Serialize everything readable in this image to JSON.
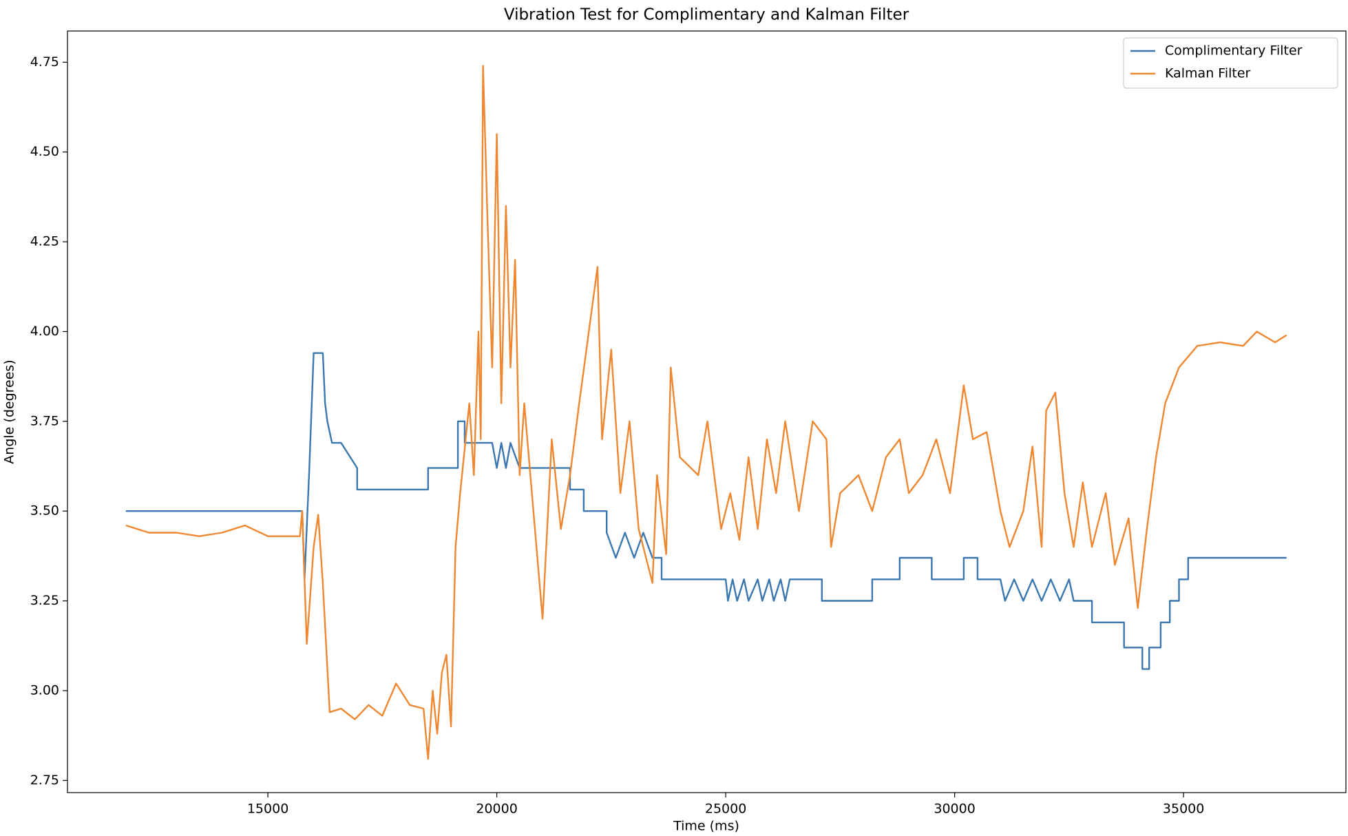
{
  "chart_data": {
    "type": "line",
    "title": "Vibration Test for Complimentary and Kalman Filter",
    "x_label": "Time (ms)",
    "y_label": "Angle (degrees)",
    "xlim": [
      10623,
      38547
    ],
    "ylim": [
      2.716,
      4.837
    ],
    "xticks": [
      15000,
      20000,
      25000,
      30000,
      35000
    ],
    "yticks": [
      2.75,
      {
        "value": 3.0,
        "label": "3.00"
      },
      3.25,
      {
        "value": 3.5,
        "label": "3.50"
      },
      3.75,
      {
        "value": 4.0,
        "label": "4.00"
      },
      4.25,
      {
        "value": 4.5,
        "label": "4.50"
      },
      4.75
    ],
    "legend": "upper right",
    "series": [
      {
        "name": "Complimentary Filter",
        "color": "#3a76b0",
        "x": [
          11900,
          15750,
          15800,
          15900,
          16000,
          16200,
          16250,
          16300,
          16400,
          16600,
          16950,
          16950,
          18500,
          18500,
          19150,
          19150,
          19300,
          19300,
          19900,
          20000,
          20100,
          20200,
          20300,
          20500,
          20500,
          21600,
          21600,
          21900,
          21900,
          22400,
          22400,
          22600,
          22800,
          23000,
          23200,
          23400,
          23600,
          23600,
          25000,
          25050,
          25150,
          25250,
          25400,
          25500,
          25700,
          25800,
          25950,
          26050,
          26200,
          26300,
          26400,
          27100,
          27100,
          28200,
          28200,
          28800,
          28800,
          29500,
          29500,
          30200,
          30200,
          30500,
          30500,
          31000,
          31100,
          31300,
          31500,
          31700,
          31900,
          32100,
          32300,
          32500,
          32600,
          33000,
          33000,
          33700,
          33700,
          34100,
          34100,
          34250,
          34250,
          34500,
          34500,
          34700,
          34700,
          34900,
          34900,
          35100,
          35100,
          37250
        ],
        "values": [
          3.5,
          3.5,
          3.31,
          3.6,
          3.94,
          3.94,
          3.8,
          3.75,
          3.69,
          3.69,
          3.62,
          3.56,
          3.56,
          3.62,
          3.62,
          3.75,
          3.75,
          3.69,
          3.69,
          3.62,
          3.69,
          3.62,
          3.69,
          3.62,
          3.62,
          3.62,
          3.56,
          3.56,
          3.5,
          3.5,
          3.44,
          3.37,
          3.44,
          3.37,
          3.44,
          3.37,
          3.37,
          3.31,
          3.31,
          3.25,
          3.31,
          3.25,
          3.31,
          3.25,
          3.31,
          3.25,
          3.31,
          3.25,
          3.31,
          3.25,
          3.31,
          3.31,
          3.25,
          3.25,
          3.31,
          3.31,
          3.37,
          3.37,
          3.31,
          3.31,
          3.37,
          3.37,
          3.31,
          3.31,
          3.25,
          3.31,
          3.25,
          3.31,
          3.25,
          3.31,
          3.25,
          3.31,
          3.25,
          3.25,
          3.19,
          3.19,
          3.12,
          3.12,
          3.06,
          3.06,
          3.12,
          3.12,
          3.19,
          3.19,
          3.25,
          3.25,
          3.31,
          3.31,
          3.37,
          3.37
        ]
      },
      {
        "name": "Kalman Filter",
        "color": "#ef8630",
        "x": [
          11900,
          12400,
          13000,
          13500,
          14000,
          14500,
          15000,
          15700,
          15750,
          15800,
          15850,
          16000,
          16100,
          16200,
          16350,
          16600,
          16900,
          17200,
          17500,
          17800,
          18100,
          18400,
          18500,
          18600,
          18700,
          18800,
          18900,
          19000,
          19100,
          19200,
          19400,
          19500,
          19600,
          19650,
          19700,
          19800,
          19900,
          20000,
          20100,
          20200,
          20300,
          20400,
          20500,
          20600,
          20800,
          21000,
          21200,
          21400,
          21600,
          21800,
          22200,
          22300,
          22500,
          22700,
          22900,
          23100,
          23400,
          23500,
          23700,
          23800,
          24000,
          24400,
          24600,
          24900,
          25100,
          25300,
          25500,
          25700,
          25900,
          26100,
          26300,
          26600,
          26900,
          27200,
          27300,
          27500,
          27900,
          28200,
          28500,
          28800,
          29000,
          29300,
          29600,
          29900,
          30200,
          30400,
          30700,
          31000,
          31200,
          31500,
          31700,
          31900,
          32000,
          32200,
          32400,
          32600,
          32800,
          33000,
          33300,
          33500,
          33800,
          34000,
          34200,
          34400,
          34600,
          34900,
          35300,
          35800,
          36300,
          36600,
          37000,
          37250
        ],
        "values": [
          3.46,
          3.44,
          3.44,
          3.43,
          3.44,
          3.46,
          3.43,
          3.43,
          3.5,
          3.31,
          3.13,
          3.4,
          3.49,
          3.3,
          2.94,
          2.95,
          2.92,
          2.96,
          2.93,
          3.02,
          2.96,
          2.95,
          2.81,
          3.0,
          2.88,
          3.05,
          3.1,
          2.9,
          3.4,
          3.55,
          3.8,
          3.6,
          4.0,
          3.7,
          4.74,
          4.3,
          3.9,
          4.55,
          3.8,
          4.35,
          3.9,
          4.2,
          3.6,
          3.8,
          3.5,
          3.2,
          3.7,
          3.45,
          3.6,
          3.8,
          4.18,
          3.7,
          3.95,
          3.55,
          3.75,
          3.45,
          3.3,
          3.6,
          3.38,
          3.9,
          3.65,
          3.6,
          3.75,
          3.45,
          3.55,
          3.42,
          3.65,
          3.45,
          3.7,
          3.55,
          3.75,
          3.5,
          3.75,
          3.7,
          3.4,
          3.55,
          3.6,
          3.5,
          3.65,
          3.7,
          3.55,
          3.6,
          3.7,
          3.55,
          3.85,
          3.7,
          3.72,
          3.5,
          3.4,
          3.5,
          3.68,
          3.4,
          3.78,
          3.83,
          3.55,
          3.4,
          3.58,
          3.4,
          3.55,
          3.35,
          3.48,
          3.23,
          3.45,
          3.65,
          3.8,
          3.9,
          3.96,
          3.97,
          3.96,
          4.0,
          3.97,
          3.99
        ]
      }
    ]
  }
}
